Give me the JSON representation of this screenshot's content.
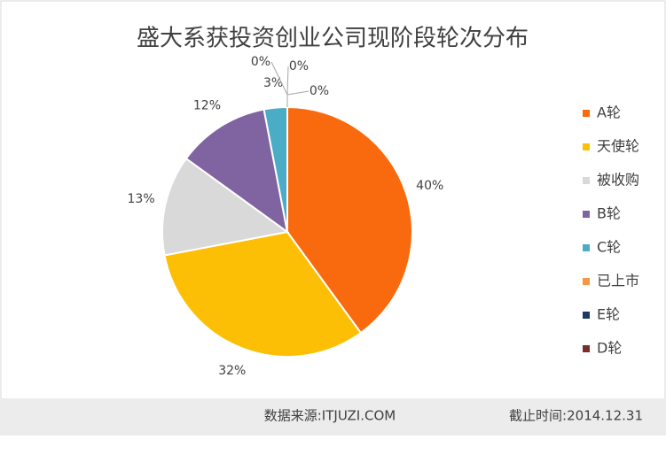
{
  "chart_data": {
    "type": "pie",
    "title": "盛大系获投资创业公司现阶段轮次分布",
    "categories": [
      "A轮",
      "天使轮",
      "被收购",
      "B轮",
      "C轮",
      "已上市",
      "E轮",
      "D轮"
    ],
    "values": [
      40,
      32,
      13,
      12,
      3,
      0,
      0,
      0
    ],
    "value_labels": [
      "40%",
      "32%",
      "13%",
      "12%",
      "3%",
      "0%",
      "0%",
      "0%"
    ],
    "colors": [
      "#f96a0e",
      "#fdbf06",
      "#d9d9d9",
      "#8064a2",
      "#4bacc6",
      "#f79646",
      "#1f3864",
      "#7b2c2c"
    ],
    "legend": "right"
  },
  "footer": {
    "source": "数据来源:ITJUZI.COM",
    "date": "截止时间:2014.12.31"
  }
}
